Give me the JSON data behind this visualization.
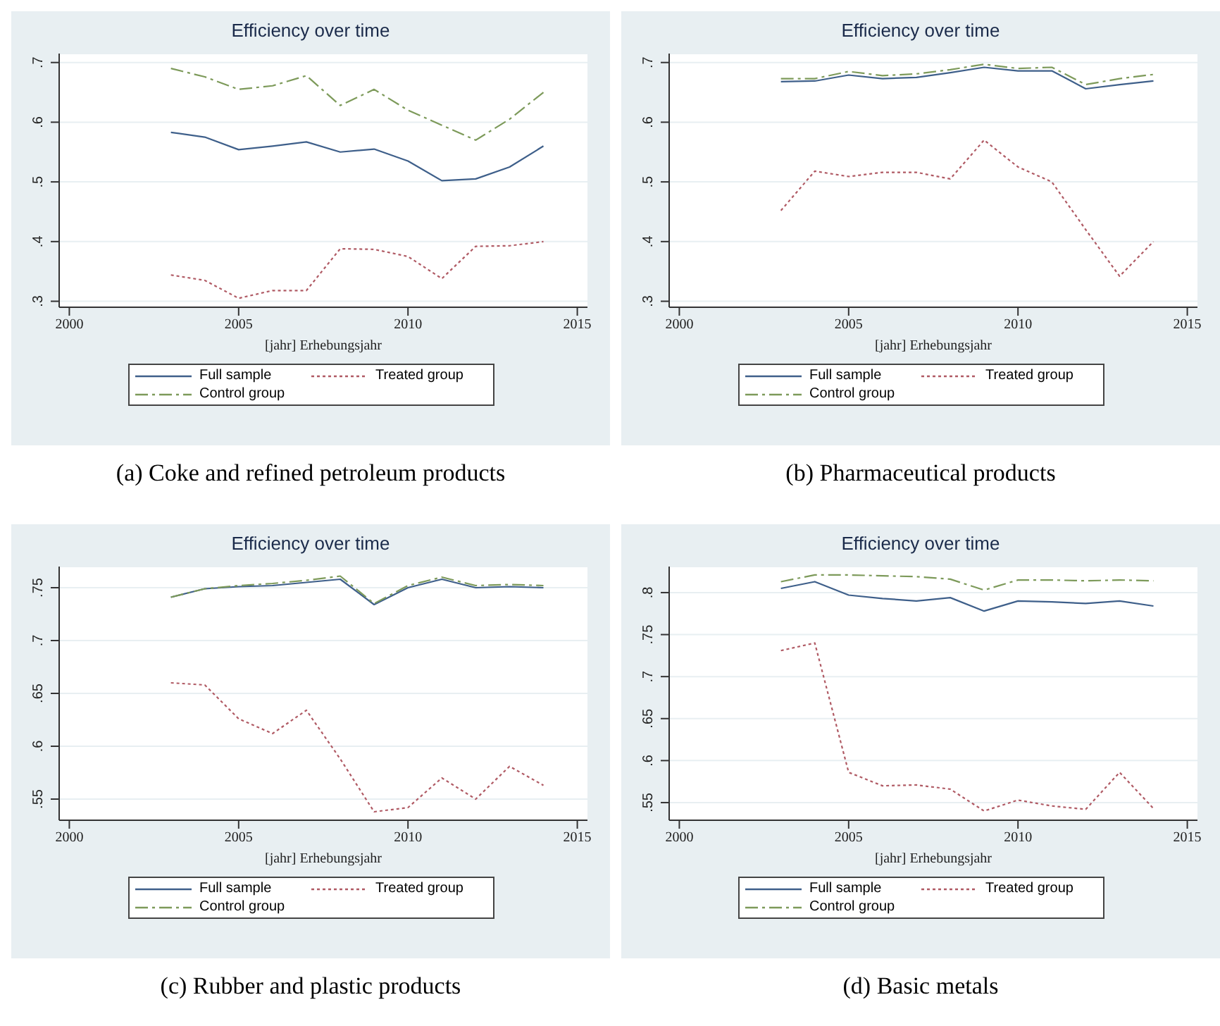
{
  "chart_data": [
    {
      "type": "line",
      "title": "Efficiency over time",
      "xlabel": "[jahr] Erhebungsjahr",
      "annotations": [
        "(a) Coke and refined petroleum products"
      ],
      "x": [
        2003,
        2004,
        2005,
        2006,
        2007,
        2008,
        2009,
        2010,
        2011,
        2012,
        2013,
        2014
      ],
      "xlim": [
        1999.7,
        2015.3
      ],
      "xticks": [
        2000,
        2005,
        2010,
        2015
      ],
      "ylim": [
        0.29,
        0.715
      ],
      "yticks": [
        {
          "value": 0.3,
          "label": ".3"
        },
        {
          "value": 0.4,
          "label": ".4"
        },
        {
          "value": 0.5,
          "label": ".5"
        },
        {
          "value": 0.6,
          "label": ".6"
        },
        {
          "value": 0.7,
          "label": ".7"
        }
      ],
      "grid": "y",
      "legend": "bottom",
      "series": [
        {
          "name": "Full sample",
          "color": "#3e5f8a",
          "line_style": "solid",
          "values": [
            0.583,
            0.575,
            0.554,
            0.56,
            0.567,
            0.55,
            0.555,
            0.535,
            0.502,
            0.505,
            0.525,
            0.56
          ]
        },
        {
          "name": "Treated group",
          "color": "#b05a64",
          "line_style": "dotted",
          "values": [
            0.344,
            0.335,
            0.305,
            0.318,
            0.318,
            0.388,
            0.387,
            0.375,
            0.338,
            0.392,
            0.393,
            0.4
          ]
        },
        {
          "name": "Control group",
          "color": "#7d9a5a",
          "line_style": "dashed",
          "values": [
            0.69,
            0.676,
            0.655,
            0.661,
            0.678,
            0.628,
            0.655,
            0.62,
            0.595,
            0.57,
            0.605,
            0.65
          ]
        }
      ]
    },
    {
      "type": "line",
      "title": "Efficiency over time",
      "xlabel": "[jahr] Erhebungsjahr",
      "annotations": [
        "(b) Pharmaceutical products"
      ],
      "x": [
        2003,
        2004,
        2005,
        2006,
        2007,
        2008,
        2009,
        2010,
        2011,
        2012,
        2013,
        2014
      ],
      "xlim": [
        1999.7,
        2015.3
      ],
      "xticks": [
        2000,
        2005,
        2010,
        2015
      ],
      "ylim": [
        0.29,
        0.715
      ],
      "yticks": [
        {
          "value": 0.3,
          "label": ".3"
        },
        {
          "value": 0.4,
          "label": ".4"
        },
        {
          "value": 0.5,
          "label": ".5"
        },
        {
          "value": 0.6,
          "label": ".6"
        },
        {
          "value": 0.7,
          "label": ".7"
        }
      ],
      "grid": "y",
      "legend": "bottom",
      "series": [
        {
          "name": "Full sample",
          "color": "#3e5f8a",
          "line_style": "solid",
          "values": [
            0.668,
            0.669,
            0.679,
            0.673,
            0.675,
            0.683,
            0.692,
            0.686,
            0.686,
            0.656,
            0.663,
            0.669
          ]
        },
        {
          "name": "Treated group",
          "color": "#b05a64",
          "line_style": "dotted",
          "values": [
            0.452,
            0.518,
            0.509,
            0.516,
            0.516,
            0.505,
            0.57,
            0.525,
            0.5,
            0.42,
            0.342,
            0.4
          ]
        },
        {
          "name": "Control group",
          "color": "#7d9a5a",
          "line_style": "dashed",
          "values": [
            0.673,
            0.673,
            0.685,
            0.678,
            0.681,
            0.688,
            0.697,
            0.69,
            0.692,
            0.663,
            0.673,
            0.68
          ]
        }
      ]
    },
    {
      "type": "line",
      "title": "Efficiency over time",
      "xlabel": "[jahr] Erhebungsjahr",
      "annotations": [
        "(c) Rubber and plastic products"
      ],
      "x": [
        2003,
        2004,
        2005,
        2006,
        2007,
        2008,
        2009,
        2010,
        2011,
        2012,
        2013,
        2014
      ],
      "xlim": [
        1999.7,
        2015.3
      ],
      "xticks": [
        2000,
        2005,
        2010,
        2015
      ],
      "ylim": [
        0.53,
        0.77
      ],
      "yticks": [
        {
          "value": 0.55,
          "label": ".55"
        },
        {
          "value": 0.6,
          "label": ".6"
        },
        {
          "value": 0.65,
          "label": ".65"
        },
        {
          "value": 0.7,
          "label": ".7"
        },
        {
          "value": 0.75,
          "label": ".75"
        }
      ],
      "grid": "y",
      "legend": "bottom",
      "series": [
        {
          "name": "Full sample",
          "color": "#3e5f8a",
          "line_style": "solid",
          "values": [
            0.741,
            0.749,
            0.751,
            0.752,
            0.755,
            0.758,
            0.734,
            0.75,
            0.758,
            0.75,
            0.751,
            0.75
          ]
        },
        {
          "name": "Treated group",
          "color": "#b05a64",
          "line_style": "dotted",
          "values": [
            0.66,
            0.658,
            0.626,
            0.612,
            0.634,
            0.588,
            0.538,
            0.542,
            0.57,
            0.55,
            0.581,
            0.563
          ]
        },
        {
          "name": "Control group",
          "color": "#7d9a5a",
          "line_style": "dashed",
          "values": [
            0.741,
            0.749,
            0.752,
            0.754,
            0.757,
            0.761,
            0.735,
            0.752,
            0.76,
            0.752,
            0.753,
            0.752
          ]
        }
      ]
    },
    {
      "type": "line",
      "title": "Efficiency over time",
      "xlabel": "[jahr] Erhebungsjahr",
      "annotations": [
        "(d) Basic metals"
      ],
      "x": [
        2003,
        2004,
        2005,
        2006,
        2007,
        2008,
        2009,
        2010,
        2011,
        2012,
        2013,
        2014
      ],
      "xlim": [
        1999.7,
        2015.3
      ],
      "xticks": [
        2000,
        2005,
        2010,
        2015
      ],
      "ylim": [
        0.529,
        0.831
      ],
      "yticks": [
        {
          "value": 0.55,
          "label": ".55"
        },
        {
          "value": 0.6,
          "label": ".6"
        },
        {
          "value": 0.65,
          "label": ".65"
        },
        {
          "value": 0.7,
          "label": ".7"
        },
        {
          "value": 0.75,
          "label": ".75"
        },
        {
          "value": 0.8,
          "label": ".8"
        }
      ],
      "grid": "y",
      "legend": "bottom",
      "series": [
        {
          "name": "Full sample",
          "color": "#3e5f8a",
          "line_style": "solid",
          "values": [
            0.805,
            0.813,
            0.797,
            0.793,
            0.79,
            0.794,
            0.778,
            0.79,
            0.789,
            0.787,
            0.79,
            0.784
          ]
        },
        {
          "name": "Treated group",
          "color": "#b05a64",
          "line_style": "dotted",
          "values": [
            0.731,
            0.74,
            0.586,
            0.57,
            0.571,
            0.566,
            0.54,
            0.553,
            0.546,
            0.542,
            0.586,
            0.543
          ]
        },
        {
          "name": "Control group",
          "color": "#7d9a5a",
          "line_style": "dashed",
          "values": [
            0.813,
            0.821,
            0.821,
            0.82,
            0.819,
            0.816,
            0.803,
            0.815,
            0.815,
            0.814,
            0.815,
            0.814
          ]
        }
      ]
    }
  ]
}
